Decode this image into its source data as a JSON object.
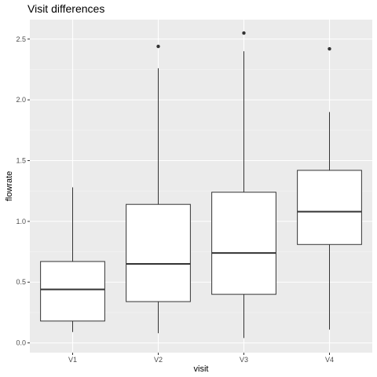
{
  "colors": {
    "panel_background": "#EBEBEB",
    "grid_major": "#FFFFFF",
    "grid_minor": "#F5F5F5",
    "box_fill": "#FFFFFF",
    "box_stroke": "#333333",
    "outlier": "#333333",
    "tick_text": "#4D4D4D"
  },
  "chart_data": {
    "type": "boxplot",
    "title": "Visit differences",
    "xlabel": "visit",
    "ylabel": "flowrate",
    "categories": [
      "V1",
      "V2",
      "V3",
      "V4"
    ],
    "ylim": [
      -0.08,
      2.66
    ],
    "yticks": [
      0.0,
      0.5,
      1.0,
      1.5,
      2.0,
      2.5
    ],
    "ytick_labels": [
      "0.0",
      "0.5",
      "1.0",
      "1.5",
      "2.0",
      "2.5"
    ],
    "grid": true,
    "legend": "none",
    "boxes": [
      {
        "category": "V1",
        "whisker_low": 0.09,
        "q1": 0.18,
        "median": 0.44,
        "q3": 0.67,
        "whisker_high": 1.28,
        "outliers": []
      },
      {
        "category": "V2",
        "whisker_low": 0.08,
        "q1": 0.34,
        "median": 0.65,
        "q3": 1.14,
        "whisker_high": 2.26,
        "outliers": [
          2.44
        ]
      },
      {
        "category": "V3",
        "whisker_low": 0.04,
        "q1": 0.4,
        "median": 0.74,
        "q3": 1.24,
        "whisker_high": 2.4,
        "outliers": [
          2.55
        ]
      },
      {
        "category": "V4",
        "whisker_low": 0.11,
        "q1": 0.81,
        "median": 1.08,
        "q3": 1.42,
        "whisker_high": 1.9,
        "outliers": [
          2.42
        ]
      }
    ]
  }
}
